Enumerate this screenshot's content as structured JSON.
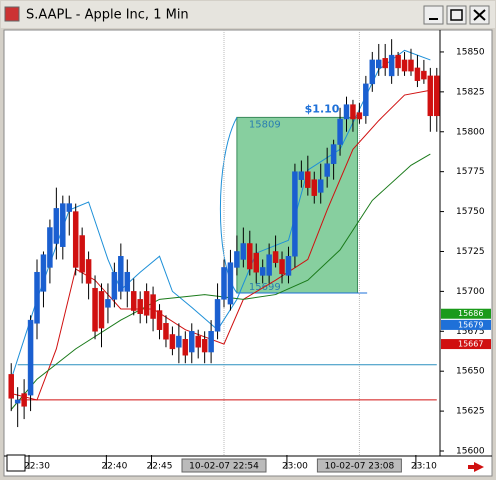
{
  "window_title": "S.AAPL - Apple Inc, 1 Min",
  "chart_data": {
    "type": "candlestick",
    "categories": [
      null,
      null,
      null,
      null,
      "22:30",
      null,
      null,
      null,
      null,
      null,
      null,
      null,
      null,
      null,
      null,
      null,
      "22:40",
      null,
      null,
      null,
      null,
      null,
      null,
      "22:45",
      null,
      null,
      null,
      null,
      null,
      null,
      null,
      null,
      null,
      "10-02-07 22:54",
      null,
      null,
      null,
      null,
      null,
      null,
      null,
      null,
      null,
      null,
      "23:00",
      null,
      null,
      null,
      null,
      null,
      null,
      null,
      null,
      null,
      "10-02-07 23:08",
      null,
      null,
      null,
      null,
      null,
      null,
      null,
      null,
      null,
      "23:10",
      null,
      null
    ],
    "open": [
      15648,
      15630,
      15636,
      15635,
      15680,
      15700,
      15715,
      15730,
      15728,
      15750,
      15750,
      15735,
      15720,
      15702,
      15700,
      15690,
      15695,
      15700,
      15700,
      15700,
      15695,
      15700,
      15698,
      15688,
      15680,
      15673,
      15665,
      15670,
      15662,
      15672,
      15670,
      15662,
      15675,
      15695,
      15692,
      15715,
      15720,
      15730,
      15724,
      15710,
      15710,
      15725,
      15720,
      15710,
      15722,
      15770,
      15775,
      15770,
      15762,
      15772,
      15780,
      15792,
      15808,
      15817,
      15812,
      15810,
      15830,
      15840,
      15846,
      15835,
      15848,
      15845,
      15845,
      15840,
      15838,
      15835,
      15835
    ],
    "high": [
      15655,
      15640,
      15645,
      15685,
      15720,
      15725,
      15745,
      15765,
      15760,
      15760,
      15755,
      15740,
      15725,
      15710,
      15705,
      15705,
      15718,
      15730,
      15720,
      15708,
      15700,
      15705,
      15703,
      15692,
      15685,
      15678,
      15680,
      15675,
      15680,
      15676,
      15675,
      15682,
      15705,
      15720,
      15726,
      15735,
      15740,
      15738,
      15730,
      15720,
      15730,
      15735,
      15725,
      15728,
      15780,
      15782,
      15785,
      15775,
      15780,
      15790,
      15795,
      15815,
      15822,
      15820,
      15818,
      15835,
      15850,
      15855,
      15855,
      15858,
      15850,
      15850,
      15852,
      15848,
      15845,
      15840,
      15840
    ],
    "low": [
      15625,
      15615,
      15620,
      15625,
      15670,
      15690,
      15705,
      15720,
      15720,
      15735,
      15710,
      15705,
      15695,
      15670,
      15665,
      15680,
      15690,
      15695,
      15690,
      15685,
      15680,
      15680,
      15675,
      15670,
      15665,
      15660,
      15655,
      15655,
      15655,
      15658,
      15655,
      15655,
      15670,
      15690,
      15688,
      15710,
      15715,
      15710,
      15705,
      15705,
      15705,
      15715,
      15705,
      15705,
      15715,
      15765,
      15760,
      15755,
      15755,
      15765,
      15770,
      15785,
      15800,
      15800,
      15805,
      15805,
      15825,
      15835,
      15835,
      15830,
      15835,
      15835,
      15835,
      15828,
      15830,
      15800,
      15800
    ],
    "close": [
      15633,
      15632,
      15628,
      15682,
      15712,
      15723,
      15740,
      15752,
      15755,
      15755,
      15715,
      15712,
      15705,
      15675,
      15677,
      15695,
      15712,
      15722,
      15712,
      15688,
      15686,
      15685,
      15683,
      15676,
      15670,
      15664,
      15672,
      15660,
      15675,
      15665,
      15662,
      15675,
      15695,
      15715,
      15718,
      15725,
      15730,
      15714,
      15712,
      15715,
      15723,
      15718,
      15711,
      15722,
      15775,
      15775,
      15765,
      15760,
      15770,
      15780,
      15792,
      15808,
      15817,
      15808,
      15808,
      15830,
      15845,
      15845,
      15840,
      15848,
      15840,
      15838,
      15838,
      15832,
      15833,
      15810,
      15810
    ],
    "up_color": "#1a5fd0",
    "down_color": "#d01010",
    "series": [
      {
        "color": "#1e90d8",
        "x": [
          0,
          4,
          9,
          12,
          15,
          17,
          20,
          23,
          25,
          28,
          32,
          35,
          38,
          43,
          46,
          51,
          54,
          57,
          61,
          65
        ],
        "values": [
          15645,
          15695,
          15751,
          15756,
          15720,
          15701,
          15712,
          15722,
          15700,
          15690,
          15676,
          15695,
          15724,
          15732,
          15776,
          15789,
          15814,
          15839,
          15851,
          15845
        ]
      },
      {
        "color": "#d01010",
        "x": [
          0,
          4,
          7,
          10,
          13,
          17,
          22,
          27,
          33,
          36,
          41,
          46,
          49,
          53,
          57,
          61,
          65
        ],
        "values": [
          15636,
          15632,
          15664,
          15714,
          15707,
          15689,
          15689,
          15676,
          15667,
          15695,
          15707,
          15720,
          15751,
          15789,
          15807,
          15823,
          15826
        ]
      },
      {
        "color": "#1a7a1a",
        "x": [
          0,
          4,
          10,
          17,
          23,
          30,
          36,
          41,
          46,
          51,
          56,
          62,
          65
        ],
        "values": [
          15626,
          15645,
          15664,
          15682,
          15695,
          15698,
          15695,
          15698,
          15707,
          15726,
          15757,
          15779,
          15786
        ]
      }
    ],
    "hlines": [
      {
        "value": 15654,
        "color": "#2a8fbf"
      },
      {
        "value": 15632,
        "color": "#d01010"
      }
    ],
    "price_badges": [
      {
        "value": 15686,
        "color": "#1a9a1a"
      },
      {
        "value": 15679,
        "color": "#1e70d8"
      },
      {
        "value": 15667,
        "color": "#d01010"
      }
    ],
    "measure": {
      "label": "$1.10",
      "top": 15809,
      "bottom": 15699,
      "from": 35,
      "to": 53.7,
      "color": "#5fbf7f"
    },
    "ylim": [
      15597.5,
      15863.75
    ],
    "yticks": [
      15600,
      15625,
      15650,
      15675,
      15700,
      15725,
      15750,
      15775,
      15800,
      15825,
      15850
    ]
  }
}
